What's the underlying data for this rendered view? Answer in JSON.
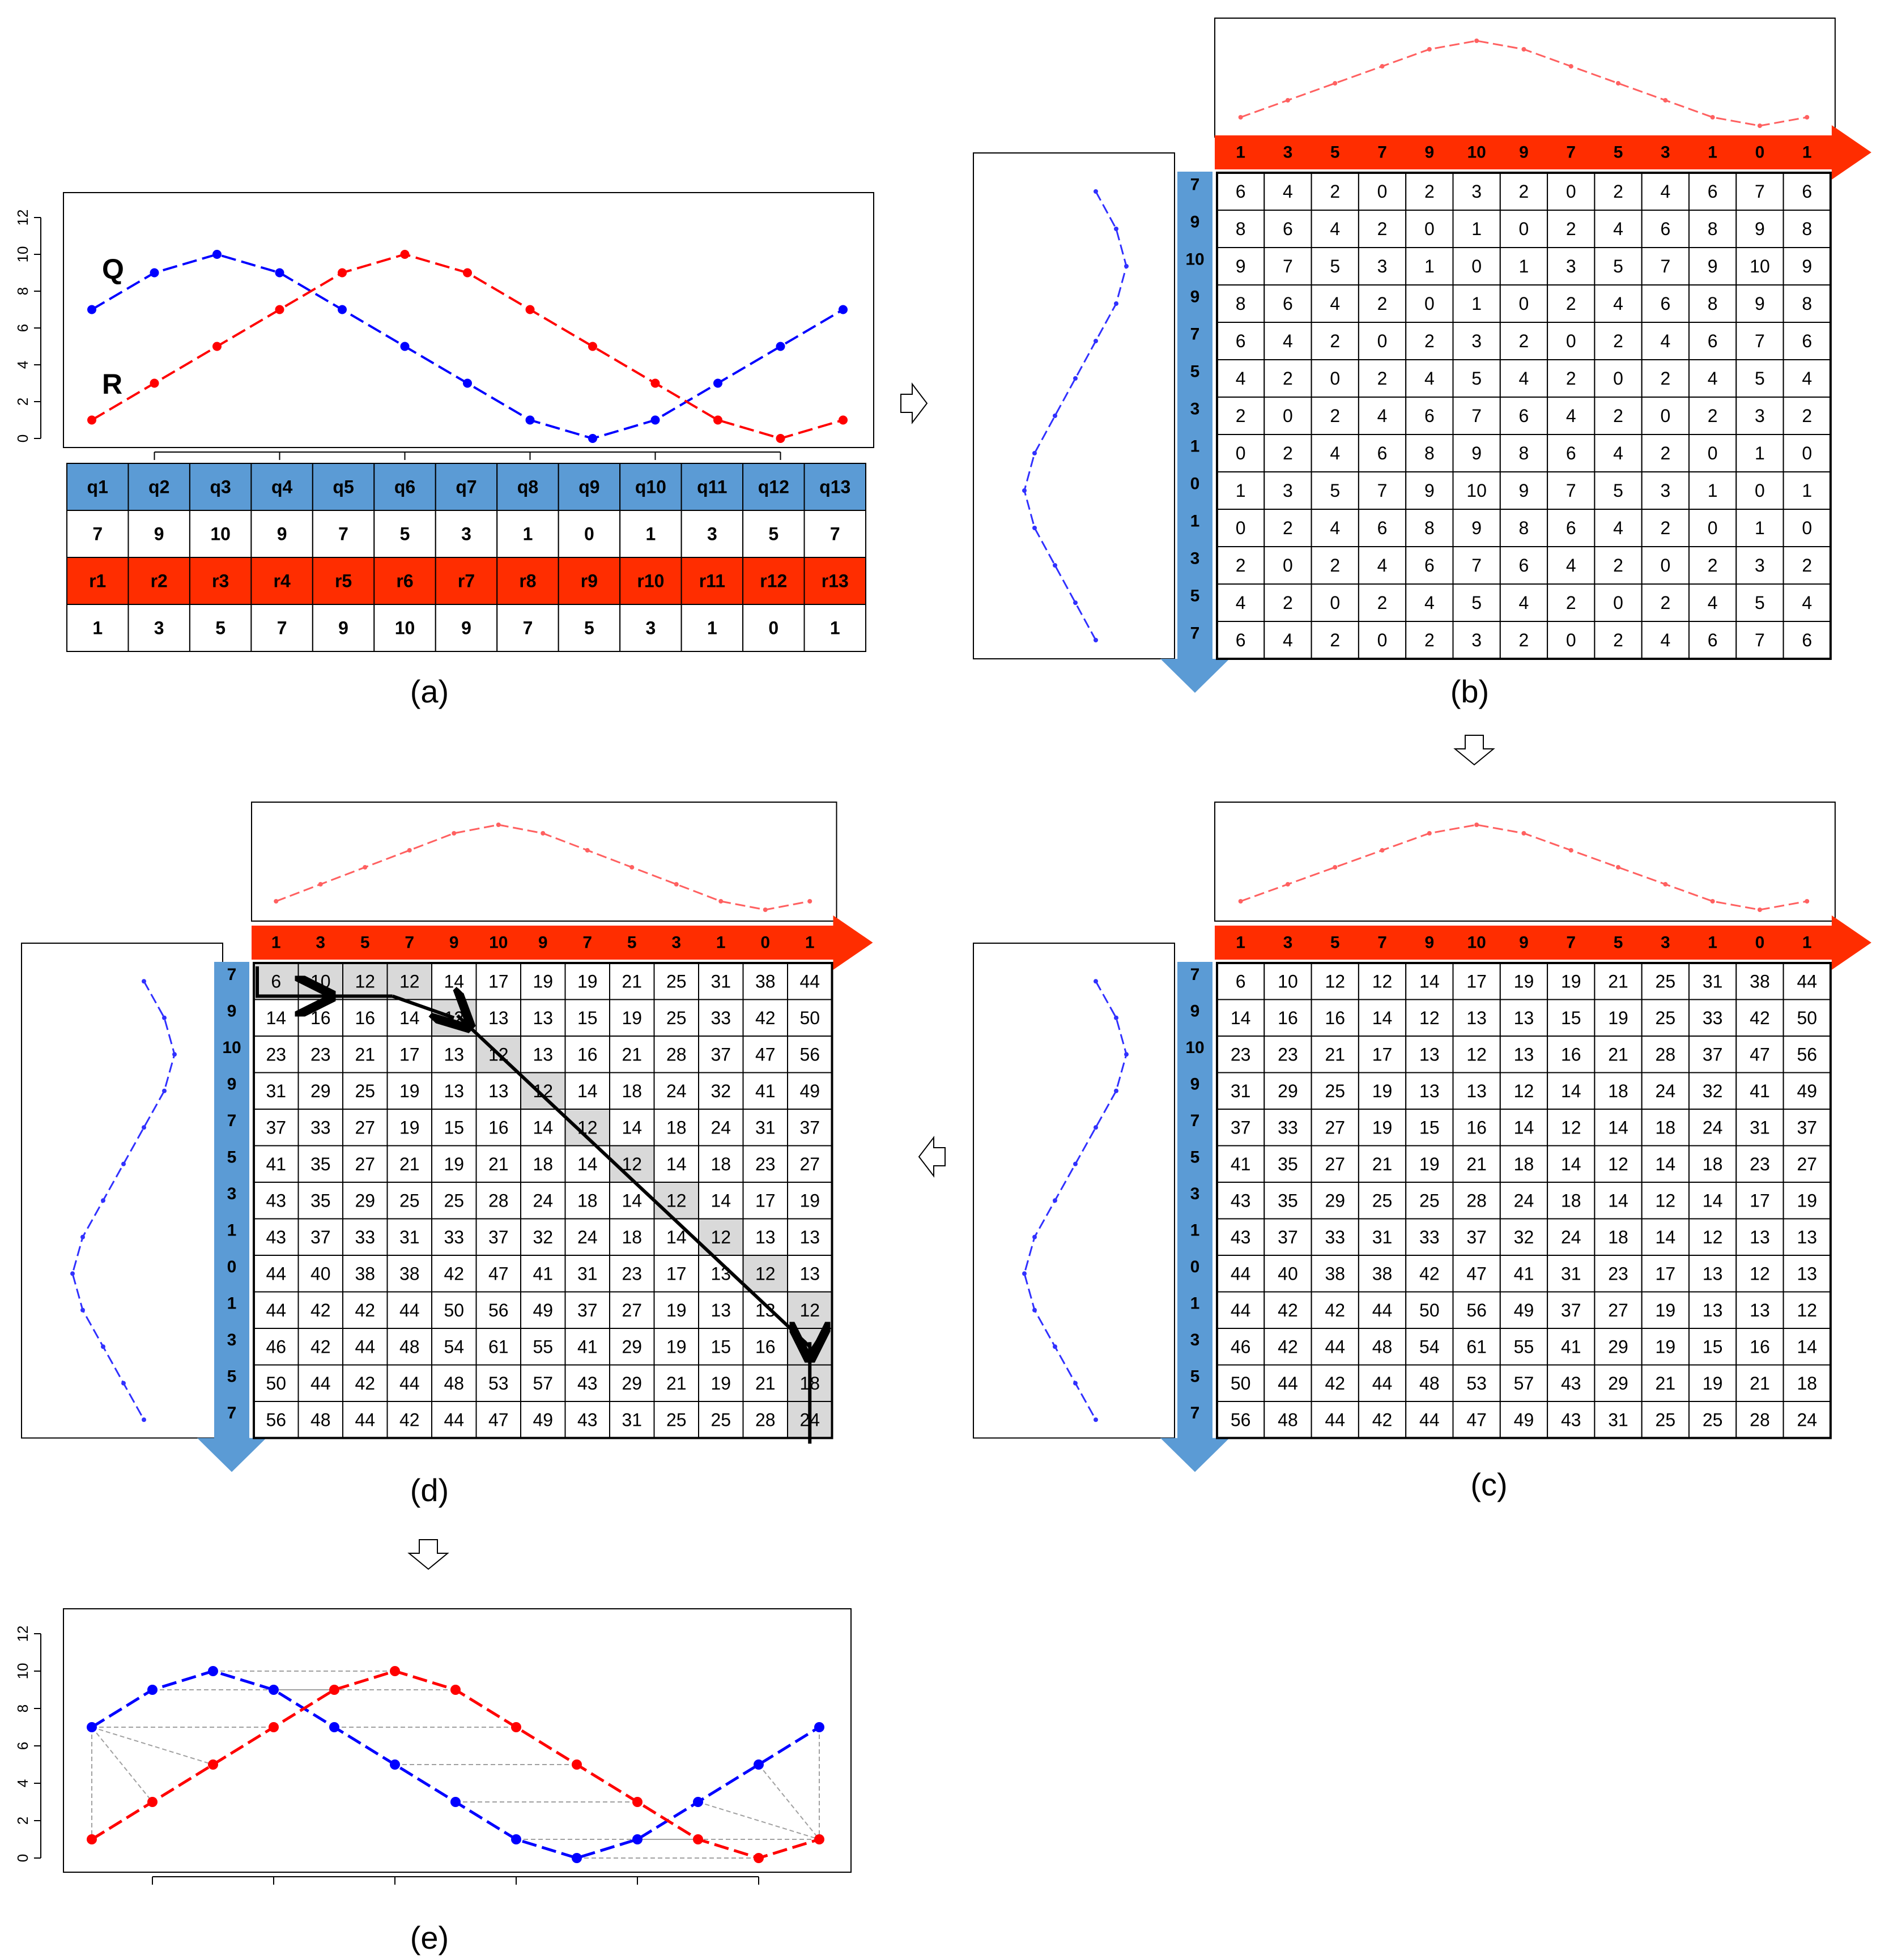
{
  "colors": {
    "q_series": "#0000ff",
    "r_series": "#ff0000",
    "q_header_bg": "#5b9bd5",
    "r_header_bg": "#ff2d00",
    "arrow_blue": "#5b9bd5",
    "arrow_red": "#ff2d00",
    "path_cell": "#d9d9d9",
    "warp_line": "#a0a0a0"
  },
  "Q": [
    7,
    9,
    10,
    9,
    7,
    5,
    3,
    1,
    0,
    1,
    3,
    5,
    7
  ],
  "R": [
    1,
    3,
    5,
    7,
    9,
    10,
    9,
    7,
    5,
    3,
    1,
    0,
    1
  ],
  "panel_a": {
    "caption": "(a)",
    "label_q": "Q",
    "label_r": "R",
    "yticks": [
      "0",
      "2",
      "4",
      "6",
      "8",
      "10",
      "12"
    ],
    "q_headers": [
      "q1",
      "q2",
      "q3",
      "q4",
      "q5",
      "q6",
      "q7",
      "q8",
      "q9",
      "q10",
      "q11",
      "q12",
      "q13"
    ],
    "q_values": [
      "7",
      "9",
      "10",
      "9",
      "7",
      "5",
      "3",
      "1",
      "0",
      "1",
      "3",
      "5",
      "7"
    ],
    "r_headers": [
      "r1",
      "r2",
      "r3",
      "r4",
      "r5",
      "r6",
      "r7",
      "r8",
      "r9",
      "r10",
      "r11",
      "r12",
      "r13"
    ],
    "r_values": [
      "1",
      "3",
      "5",
      "7",
      "9",
      "10",
      "9",
      "7",
      "5",
      "3",
      "1",
      "0",
      "1"
    ]
  },
  "panel_b": {
    "caption": "(b)",
    "matrix": [
      [
        6,
        4,
        2,
        0,
        2,
        3,
        2,
        0,
        2,
        4,
        6,
        7,
        6
      ],
      [
        8,
        6,
        4,
        2,
        0,
        1,
        0,
        2,
        4,
        6,
        8,
        9,
        8
      ],
      [
        9,
        7,
        5,
        3,
        1,
        0,
        1,
        3,
        5,
        7,
        9,
        10,
        9
      ],
      [
        8,
        6,
        4,
        2,
        0,
        1,
        0,
        2,
        4,
        6,
        8,
        9,
        8
      ],
      [
        6,
        4,
        2,
        0,
        2,
        3,
        2,
        0,
        2,
        4,
        6,
        7,
        6
      ],
      [
        4,
        2,
        0,
        2,
        4,
        5,
        4,
        2,
        0,
        2,
        4,
        5,
        4
      ],
      [
        2,
        0,
        2,
        4,
        6,
        7,
        6,
        4,
        2,
        0,
        2,
        3,
        2
      ],
      [
        0,
        2,
        4,
        6,
        8,
        9,
        8,
        6,
        4,
        2,
        0,
        1,
        0
      ],
      [
        1,
        3,
        5,
        7,
        9,
        10,
        9,
        7,
        5,
        3,
        1,
        0,
        1
      ],
      [
        0,
        2,
        4,
        6,
        8,
        9,
        8,
        6,
        4,
        2,
        0,
        1,
        0
      ],
      [
        2,
        0,
        2,
        4,
        6,
        7,
        6,
        4,
        2,
        0,
        2,
        3,
        2
      ],
      [
        4,
        2,
        0,
        2,
        4,
        5,
        4,
        2,
        0,
        2,
        4,
        5,
        4
      ],
      [
        6,
        4,
        2,
        0,
        2,
        3,
        2,
        0,
        2,
        4,
        6,
        7,
        6
      ]
    ]
  },
  "panel_c": {
    "caption": "(c)",
    "matrix": [
      [
        6,
        10,
        12,
        12,
        14,
        17,
        19,
        19,
        21,
        25,
        31,
        38,
        44
      ],
      [
        14,
        16,
        16,
        14,
        12,
        13,
        13,
        15,
        19,
        25,
        33,
        42,
        50
      ],
      [
        23,
        23,
        21,
        17,
        13,
        12,
        13,
        16,
        21,
        28,
        37,
        47,
        56
      ],
      [
        31,
        29,
        25,
        19,
        13,
        13,
        12,
        14,
        18,
        24,
        32,
        41,
        49
      ],
      [
        37,
        33,
        27,
        19,
        15,
        16,
        14,
        12,
        14,
        18,
        24,
        31,
        37
      ],
      [
        41,
        35,
        27,
        21,
        19,
        21,
        18,
        14,
        12,
        14,
        18,
        23,
        27
      ],
      [
        43,
        35,
        29,
        25,
        25,
        28,
        24,
        18,
        14,
        12,
        14,
        17,
        19
      ],
      [
        43,
        37,
        33,
        31,
        33,
        37,
        32,
        24,
        18,
        14,
        12,
        13,
        13
      ],
      [
        44,
        40,
        38,
        38,
        42,
        47,
        41,
        31,
        23,
        17,
        13,
        12,
        13
      ],
      [
        44,
        42,
        42,
        44,
        50,
        56,
        49,
        37,
        27,
        19,
        13,
        13,
        12
      ],
      [
        46,
        42,
        44,
        48,
        54,
        61,
        55,
        41,
        29,
        19,
        15,
        16,
        14
      ],
      [
        50,
        44,
        42,
        44,
        48,
        53,
        57,
        43,
        29,
        21,
        19,
        21,
        18
      ],
      [
        56,
        48,
        44,
        42,
        44,
        47,
        49,
        43,
        31,
        25,
        25,
        28,
        24
      ]
    ]
  },
  "panel_d": {
    "caption": "(d)",
    "path_cells": [
      [
        0,
        0
      ],
      [
        0,
        1
      ],
      [
        0,
        2
      ],
      [
        0,
        3
      ],
      [
        1,
        4
      ],
      [
        2,
        5
      ],
      [
        3,
        6
      ],
      [
        4,
        7
      ],
      [
        5,
        8
      ],
      [
        6,
        9
      ],
      [
        7,
        10
      ],
      [
        8,
        11
      ],
      [
        9,
        12
      ],
      [
        10,
        12
      ],
      [
        11,
        12
      ],
      [
        12,
        12
      ]
    ]
  },
  "panel_e": {
    "caption": "(e)",
    "yticks": [
      "0",
      "2",
      "4",
      "6",
      "8",
      "10",
      "12"
    ],
    "warping_path": [
      [
        0,
        0
      ],
      [
        0,
        1
      ],
      [
        0,
        2
      ],
      [
        0,
        3
      ],
      [
        1,
        4
      ],
      [
        2,
        5
      ],
      [
        3,
        6
      ],
      [
        4,
        7
      ],
      [
        5,
        8
      ],
      [
        6,
        9
      ],
      [
        7,
        10
      ],
      [
        8,
        11
      ],
      [
        9,
        12
      ],
      [
        10,
        12
      ],
      [
        11,
        12
      ],
      [
        12,
        12
      ]
    ]
  }
}
